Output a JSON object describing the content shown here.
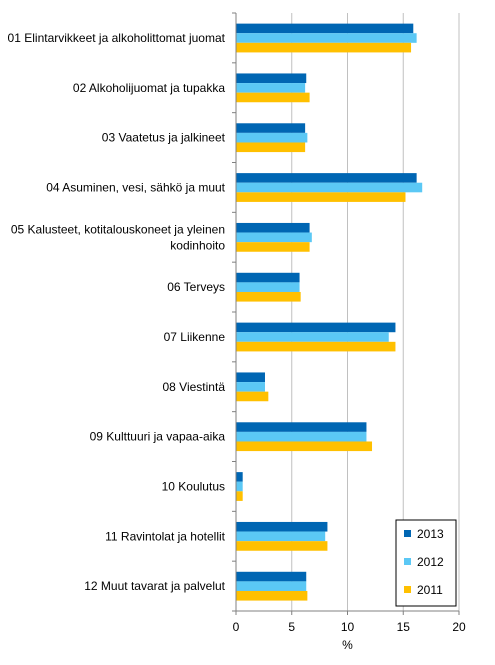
{
  "chart_data": {
    "type": "bar",
    "orientation": "horizontal",
    "categories": [
      [
        "01 Elintarvikkeet ja alkoholittomat juomat"
      ],
      [
        "02 Alkoholijuomat ja tupakka"
      ],
      [
        "03 Vaatetus ja jalkineet"
      ],
      [
        "04 Asuminen, vesi, sähkö ja muut"
      ],
      [
        "05 Kalusteet, kotitalouskoneet ja yleinen",
        "kodinhoito"
      ],
      [
        "06 Terveys"
      ],
      [
        "07 Liikenne"
      ],
      [
        "08 Viestintä"
      ],
      [
        "09 Kulttuuri ja vapaa-aika"
      ],
      [
        "10 Koulutus"
      ],
      [
        "11 Ravintolat ja hotellit"
      ],
      [
        "12 Muut tavarat ja palvelut"
      ]
    ],
    "series": [
      {
        "name": "2013",
        "color": "#0066b3",
        "values": [
          15.9,
          6.3,
          6.2,
          16.2,
          6.6,
          5.7,
          14.3,
          2.6,
          11.7,
          0.6,
          8.2,
          6.3
        ]
      },
      {
        "name": "2012",
        "color": "#5bc8f5",
        "values": [
          16.2,
          6.2,
          6.4,
          16.7,
          6.8,
          5.7,
          13.7,
          2.6,
          11.7,
          0.6,
          8.0,
          6.3
        ]
      },
      {
        "name": "2011",
        "color": "#ffc000",
        "values": [
          15.7,
          6.6,
          6.2,
          15.2,
          6.6,
          5.8,
          14.3,
          2.9,
          12.2,
          0.6,
          8.2,
          6.4
        ]
      }
    ],
    "xlabel": "%",
    "xlim": [
      0,
      20
    ],
    "xticks": [
      "0",
      "5",
      "10",
      "15",
      "20"
    ],
    "grid": "vertical major gridlines",
    "legend_position": "bottom-right"
  }
}
